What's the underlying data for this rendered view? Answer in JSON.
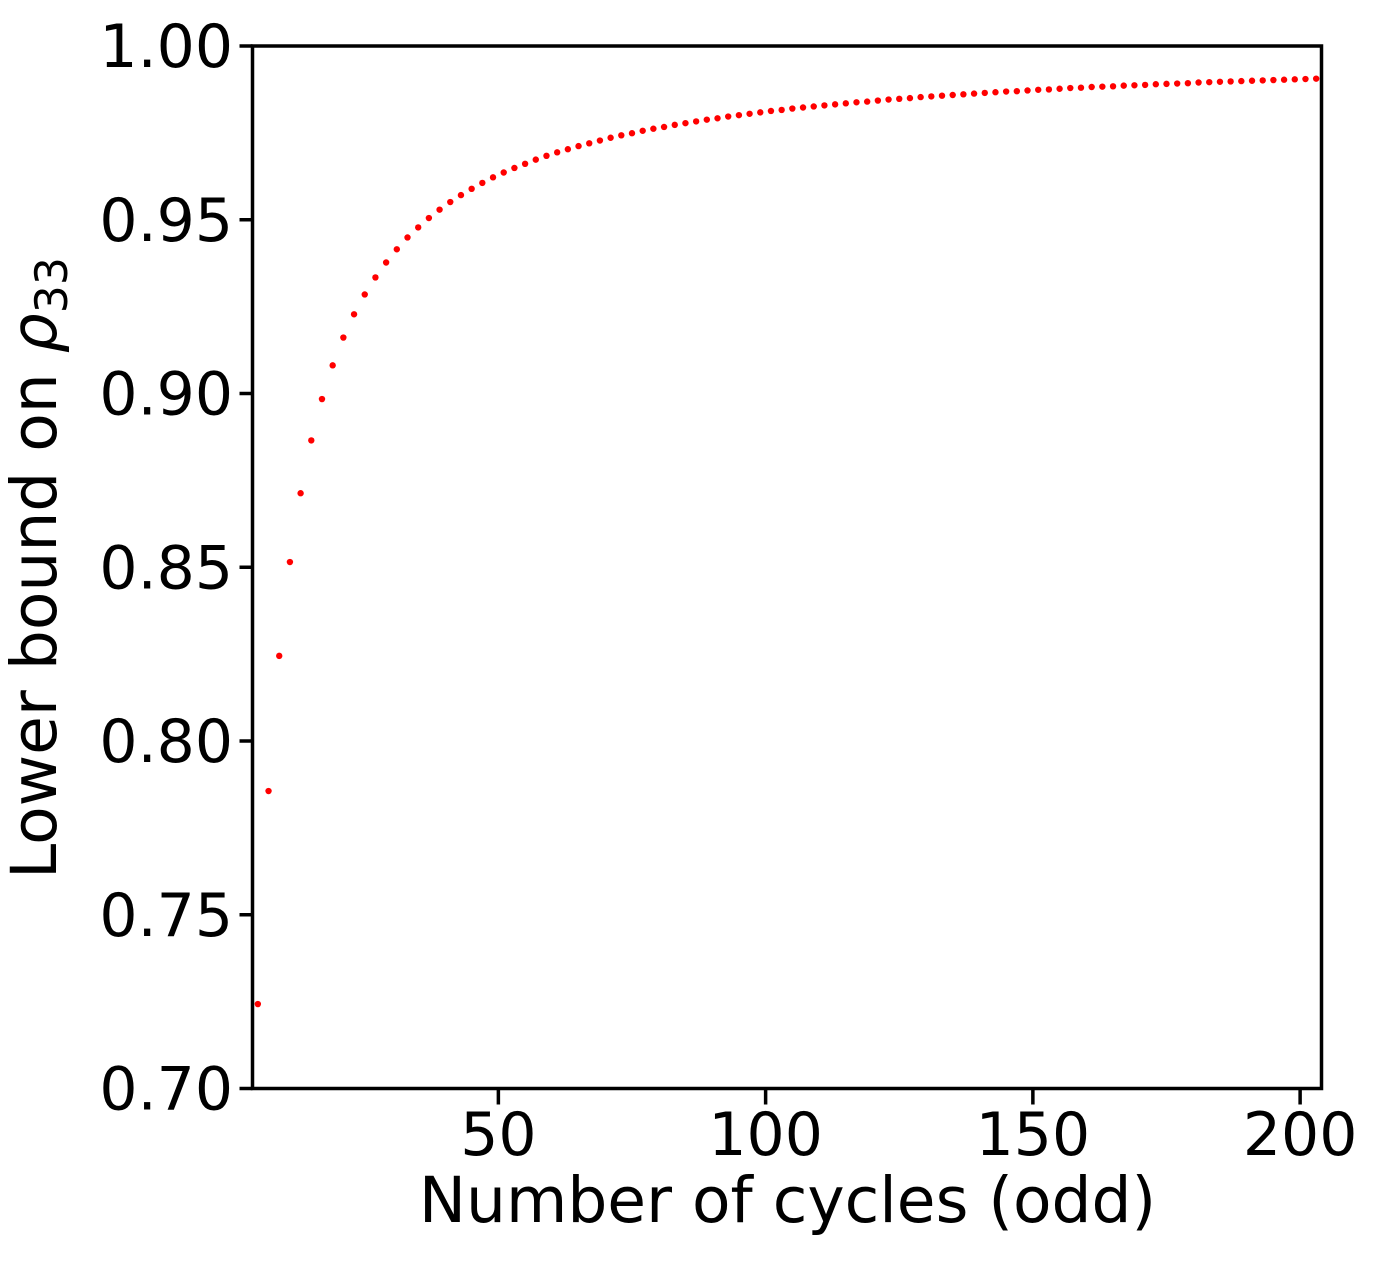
{
  "figure": {
    "background_color": "#ffffff",
    "axis_color": "#000000"
  },
  "chart_data": {
    "type": "scatter",
    "title": "",
    "xlabel": "Number of cycles (odd)",
    "ylabel_prefix": "Lower bound on ",
    "ylabel_symbol": "ρ",
    "ylabel_subscript": "33",
    "marker_color": "#ff0000",
    "marker_shape": "dot",
    "grid": false,
    "legend": "none",
    "xlim": [
      4,
      204
    ],
    "ylim": [
      0.7,
      1.0
    ],
    "xticks": [
      50,
      100,
      150,
      200
    ],
    "xtick_labels": [
      "50",
      "100",
      "150",
      "200"
    ],
    "yticks": [
      0.7,
      0.75,
      0.8,
      0.85,
      0.9,
      0.95,
      1.0
    ],
    "ytick_labels": [
      "0.70",
      "0.75",
      "0.80",
      "0.85",
      "0.90",
      "0.95",
      "1.00"
    ],
    "points": [
      [
        5,
        0.7243
      ],
      [
        7,
        0.7856
      ],
      [
        9,
        0.8245
      ],
      [
        11,
        0.8515
      ],
      [
        13,
        0.8713
      ],
      [
        15,
        0.8865
      ],
      [
        17,
        0.8984
      ],
      [
        19,
        0.9081
      ],
      [
        21,
        0.9161
      ],
      [
        23,
        0.9228
      ],
      [
        25,
        0.9285
      ],
      [
        27,
        0.9334
      ],
      [
        29,
        0.9377
      ],
      [
        31,
        0.9415
      ],
      [
        33,
        0.9449
      ],
      [
        35,
        0.9478
      ],
      [
        37,
        0.9505
      ],
      [
        39,
        0.9529
      ],
      [
        41,
        0.9551
      ],
      [
        43,
        0.9571
      ],
      [
        45,
        0.9589
      ],
      [
        47,
        0.9606
      ],
      [
        49,
        0.9622
      ],
      [
        51,
        0.9636
      ],
      [
        53,
        0.9649
      ],
      [
        55,
        0.9661
      ],
      [
        57,
        0.9673
      ],
      [
        59,
        0.9684
      ],
      [
        61,
        0.9694
      ],
      [
        63,
        0.9703
      ],
      [
        65,
        0.9712
      ],
      [
        67,
        0.972
      ],
      [
        69,
        0.9728
      ],
      [
        71,
        0.9736
      ],
      [
        73,
        0.9743
      ],
      [
        75,
        0.9749
      ],
      [
        77,
        0.9756
      ],
      [
        79,
        0.9762
      ],
      [
        81,
        0.9767
      ],
      [
        83,
        0.9773
      ],
      [
        85,
        0.9778
      ],
      [
        87,
        0.9783
      ],
      [
        89,
        0.9788
      ],
      [
        91,
        0.9792
      ],
      [
        93,
        0.9797
      ],
      [
        95,
        0.9801
      ],
      [
        97,
        0.9805
      ],
      [
        99,
        0.9809
      ],
      [
        101,
        0.9813
      ],
      [
        103,
        0.9816
      ],
      [
        105,
        0.982
      ],
      [
        107,
        0.9823
      ],
      [
        109,
        0.9826
      ],
      [
        111,
        0.9829
      ],
      [
        113,
        0.9832
      ],
      [
        115,
        0.9835
      ],
      [
        117,
        0.9838
      ],
      [
        119,
        0.984
      ],
      [
        121,
        0.9843
      ],
      [
        123,
        0.9846
      ],
      [
        125,
        0.9848
      ],
      [
        127,
        0.985
      ],
      [
        129,
        0.9853
      ],
      [
        131,
        0.9855
      ],
      [
        133,
        0.9857
      ],
      [
        135,
        0.9859
      ],
      [
        137,
        0.9861
      ],
      [
        139,
        0.9863
      ],
      [
        141,
        0.9865
      ],
      [
        143,
        0.9867
      ],
      [
        145,
        0.9869
      ],
      [
        147,
        0.987
      ],
      [
        149,
        0.9872
      ],
      [
        151,
        0.9874
      ],
      [
        153,
        0.9875
      ],
      [
        155,
        0.9877
      ],
      [
        157,
        0.9879
      ],
      [
        159,
        0.988
      ],
      [
        161,
        0.9882
      ],
      [
        163,
        0.9883
      ],
      [
        165,
        0.9884
      ],
      [
        167,
        0.9886
      ],
      [
        169,
        0.9887
      ],
      [
        171,
        0.9888
      ],
      [
        173,
        0.989
      ],
      [
        175,
        0.9891
      ],
      [
        177,
        0.9892
      ],
      [
        179,
        0.9893
      ],
      [
        181,
        0.9895
      ],
      [
        183,
        0.9896
      ],
      [
        185,
        0.9897
      ],
      [
        187,
        0.9898
      ],
      [
        189,
        0.9899
      ],
      [
        191,
        0.99
      ],
      [
        193,
        0.9901
      ],
      [
        195,
        0.9902
      ],
      [
        197,
        0.9903
      ],
      [
        199,
        0.9904
      ],
      [
        201,
        0.9905
      ],
      [
        203,
        0.9906
      ]
    ]
  }
}
